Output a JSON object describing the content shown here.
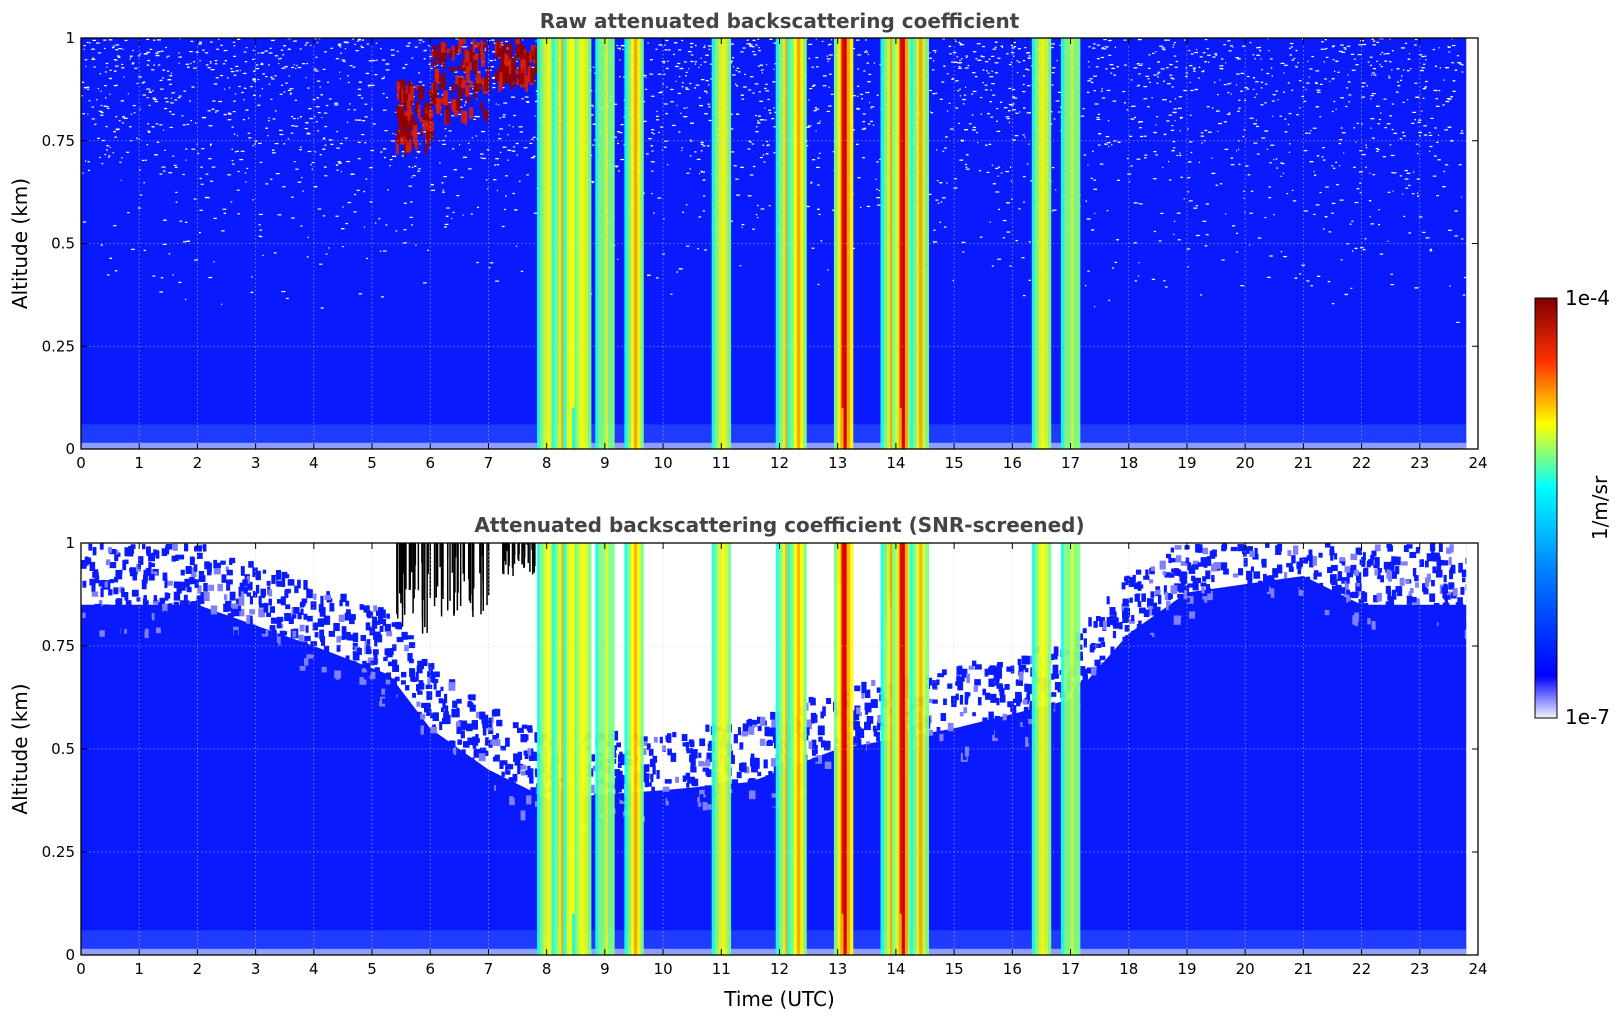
{
  "chart_data": [
    {
      "type": "heatmap",
      "title": "Raw attenuated backscattering coefficient",
      "xlabel": "",
      "ylabel": "Altitude (km)",
      "xlim": [
        0,
        24
      ],
      "ylim": [
        0,
        1
      ],
      "x_ticks": [
        "0",
        "1",
        "2",
        "3",
        "4",
        "5",
        "6",
        "7",
        "8",
        "9",
        "10",
        "11",
        "12",
        "13",
        "14",
        "15",
        "16",
        "17",
        "18",
        "19",
        "20",
        "21",
        "22",
        "23",
        "24"
      ],
      "y_ticks": [
        "0",
        "0.25",
        "0.5",
        "0.75",
        "1"
      ],
      "grid": true,
      "screened": false,
      "data_end_time": 23.8,
      "cloud_features": [
        {
          "time": 8.0,
          "intensity": 0.55
        },
        {
          "time": 8.25,
          "intensity": 0.6
        },
        {
          "time": 8.45,
          "intensity": 0.75
        },
        {
          "time": 8.6,
          "intensity": 0.5
        },
        {
          "time": 9.0,
          "intensity": 0.45
        },
        {
          "time": 9.5,
          "intensity": 0.65
        },
        {
          "time": 11.0,
          "intensity": 0.5
        },
        {
          "time": 12.1,
          "intensity": 0.6
        },
        {
          "time": 12.3,
          "intensity": 0.65
        },
        {
          "time": 13.1,
          "intensity": 0.9
        },
        {
          "time": 13.9,
          "intensity": 0.6
        },
        {
          "time": 14.1,
          "intensity": 0.85
        },
        {
          "time": 14.4,
          "intensity": 0.6
        },
        {
          "time": 16.5,
          "intensity": 0.55
        },
        {
          "time": 17.0,
          "intensity": 0.45
        }
      ],
      "high_signal_patches": [
        {
          "t_start": 5.4,
          "t_end": 6.0,
          "alt_bottom": 0.75,
          "alt_top": 0.9
        },
        {
          "t_start": 6.0,
          "t_end": 7.0,
          "alt_bottom": 0.82,
          "alt_top": 1.0
        },
        {
          "t_start": 7.1,
          "t_end": 7.9,
          "alt_bottom": 0.9,
          "alt_top": 1.0
        }
      ]
    },
    {
      "type": "heatmap",
      "title": "Attenuated backscattering coefficient (SNR-screened)",
      "xlabel": "Time (UTC)",
      "ylabel": "Altitude (km)",
      "xlim": [
        0,
        24
      ],
      "ylim": [
        0,
        1
      ],
      "x_ticks": [
        "0",
        "1",
        "2",
        "3",
        "4",
        "5",
        "6",
        "7",
        "8",
        "9",
        "10",
        "11",
        "12",
        "13",
        "14",
        "15",
        "16",
        "17",
        "18",
        "19",
        "20",
        "21",
        "22",
        "23",
        "24"
      ],
      "y_ticks": [
        "0",
        "0.25",
        "0.5",
        "0.75",
        "1"
      ],
      "grid": true,
      "screened": true,
      "data_end_time": 23.8,
      "screened_region_bottom_altitude": [
        {
          "time": 0,
          "alt": 0.85
        },
        {
          "time": 2,
          "alt": 0.85
        },
        {
          "time": 4,
          "alt": 0.75
        },
        {
          "time": 5.3,
          "alt": 0.68
        },
        {
          "time": 6,
          "alt": 0.55
        },
        {
          "time": 7,
          "alt": 0.45
        },
        {
          "time": 8,
          "alt": 0.38
        },
        {
          "time": 10,
          "alt": 0.4
        },
        {
          "time": 11.5,
          "alt": 0.42
        },
        {
          "time": 13,
          "alt": 0.5
        },
        {
          "time": 15,
          "alt": 0.55
        },
        {
          "time": 17,
          "alt": 0.62
        },
        {
          "time": 18,
          "alt": 0.78
        },
        {
          "time": 19,
          "alt": 0.88
        },
        {
          "time": 21,
          "alt": 0.92
        },
        {
          "time": 22,
          "alt": 0.85
        },
        {
          "time": 23.8,
          "alt": 0.85
        }
      ]
    }
  ],
  "colorbar": {
    "label": "1/m/sr",
    "max_label": "1e-4",
    "min_label": "1e-7",
    "colormap": "jet",
    "colors": [
      "#eeeeff",
      "#0000ff",
      "#00ffff",
      "#ffff00",
      "#ff0000",
      "#800000"
    ]
  }
}
